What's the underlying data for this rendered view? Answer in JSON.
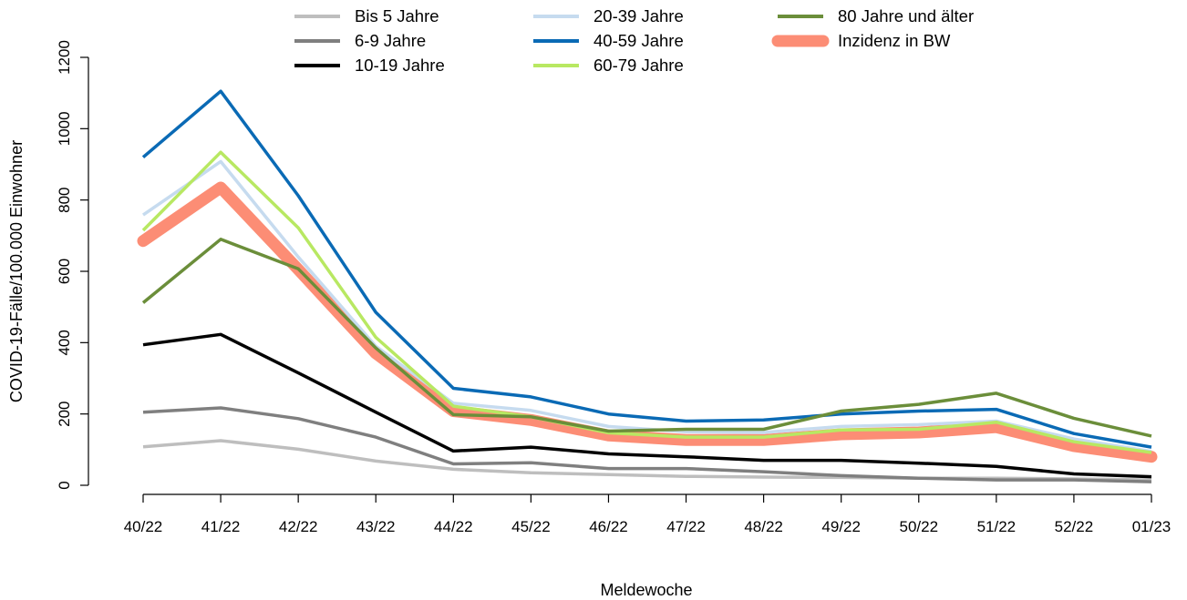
{
  "chart_data": {
    "type": "line",
    "title": "",
    "xlabel": "Meldewoche",
    "ylabel": "COVID-19-Fälle/100.000 Einwohner",
    "categories": [
      "40/22",
      "41/22",
      "42/22",
      "43/22",
      "44/22",
      "45/22",
      "46/22",
      "47/22",
      "48/22",
      "49/22",
      "50/22",
      "51/22",
      "52/22",
      "01/23"
    ],
    "ylim": [
      0,
      1200
    ],
    "yticks": [
      0,
      200,
      400,
      600,
      800,
      1000,
      1200
    ],
    "grid": false,
    "legend_position": "top",
    "series": [
      {
        "name": "Bis 5 Jahre",
        "color": "#bebebe",
        "emphasis": false,
        "values": [
          108,
          125,
          101,
          68,
          45,
          35,
          30,
          25,
          23,
          22,
          20,
          20,
          18,
          15
        ]
      },
      {
        "name": "6-9 Jahre",
        "color": "#7f7f7f",
        "emphasis": false,
        "values": [
          205,
          217,
          187,
          135,
          60,
          63,
          47,
          47,
          38,
          27,
          20,
          15,
          15,
          10
        ]
      },
      {
        "name": "10-19 Jahre",
        "color": "#000000",
        "emphasis": false,
        "values": [
          394,
          423,
          315,
          205,
          96,
          107,
          88,
          80,
          70,
          70,
          62,
          53,
          32,
          24
        ]
      },
      {
        "name": "20-39 Jahre",
        "color": "#c6dbef",
        "emphasis": false,
        "values": [
          758,
          908,
          640,
          390,
          230,
          210,
          165,
          150,
          148,
          165,
          170,
          180,
          130,
          95
        ]
      },
      {
        "name": "40-59 Jahre",
        "color": "#0a6ab5",
        "emphasis": false,
        "values": [
          920,
          1105,
          812,
          485,
          272,
          248,
          200,
          180,
          183,
          200,
          208,
          213,
          145,
          107
        ]
      },
      {
        "name": "60-79 Jahre",
        "color": "#b8e862",
        "emphasis": false,
        "values": [
          715,
          934,
          722,
          415,
          222,
          192,
          147,
          135,
          135,
          155,
          157,
          177,
          122,
          92
        ]
      },
      {
        "name": "80 Jahre und älter",
        "color": "#6b8e3a",
        "emphasis": false,
        "values": [
          512,
          690,
          607,
          385,
          198,
          192,
          152,
          157,
          157,
          208,
          227,
          258,
          188,
          138
        ]
      },
      {
        "name": "Inzidenz in BW",
        "color": "#fc8d75",
        "emphasis": true,
        "values": [
          685,
          835,
          605,
          370,
          208,
          183,
          140,
          127,
          127,
          143,
          148,
          163,
          110,
          80
        ]
      }
    ]
  }
}
